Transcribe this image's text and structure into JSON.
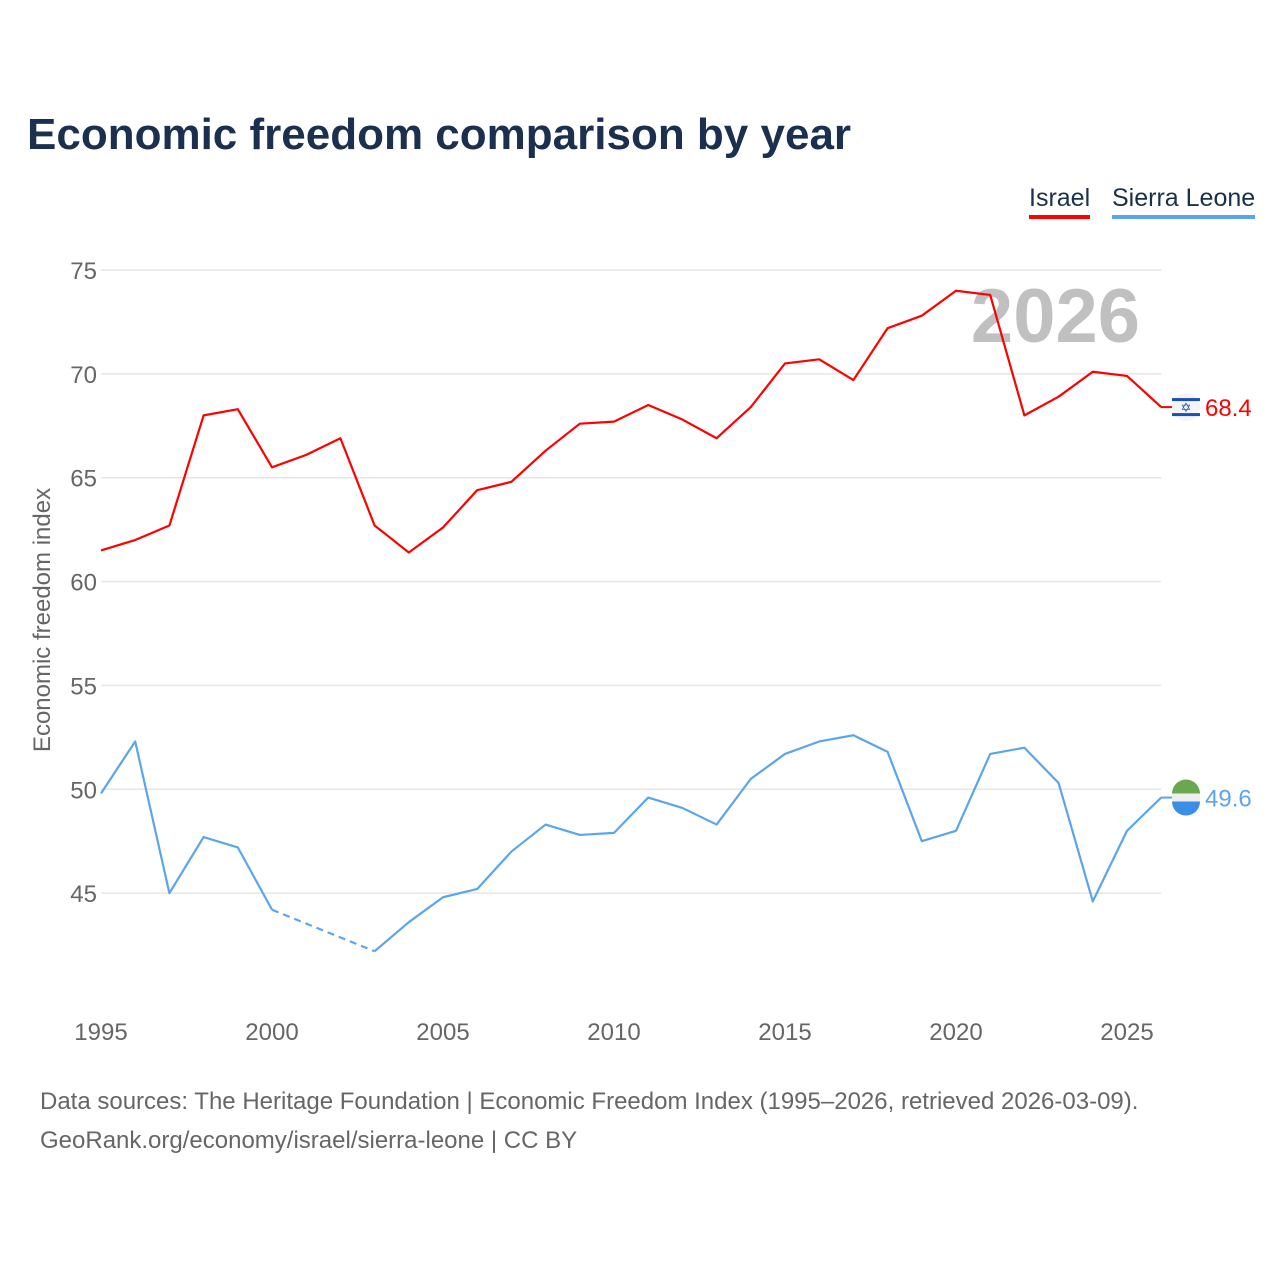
{
  "chart_data": {
    "type": "line",
    "title": "Economic freedom comparison by year",
    "xlabel": "",
    "ylabel": "Economic freedom index",
    "xlim": [
      1995,
      2026
    ],
    "ylim": [
      40,
      75
    ],
    "y_ticks": [
      45,
      50,
      55,
      60,
      65,
      70,
      75
    ],
    "x_ticks": [
      1995,
      2000,
      2005,
      2010,
      2015,
      2020,
      2025
    ],
    "grid": true,
    "legend_position": "top-right",
    "year_label": "2026",
    "x": [
      1995,
      1996,
      1997,
      1998,
      1999,
      2000,
      2001,
      2002,
      2003,
      2004,
      2005,
      2006,
      2007,
      2008,
      2009,
      2010,
      2011,
      2012,
      2013,
      2014,
      2015,
      2016,
      2017,
      2018,
      2019,
      2020,
      2021,
      2022,
      2023,
      2024,
      2025,
      2026
    ],
    "series": [
      {
        "name": "Israel",
        "color": "#ff0000",
        "end_label": "68.4",
        "values": [
          61.5,
          62.0,
          62.7,
          68.0,
          68.3,
          65.5,
          66.1,
          66.9,
          62.7,
          61.4,
          62.6,
          64.4,
          64.8,
          66.3,
          67.6,
          67.7,
          68.5,
          67.8,
          66.9,
          68.4,
          70.5,
          70.7,
          69.7,
          72.2,
          72.8,
          74.0,
          73.8,
          68.0,
          68.9,
          70.1,
          69.9,
          68.4
        ]
      },
      {
        "name": "Sierra Leone",
        "color": "#5aa5ec",
        "end_label": "49.6",
        "values": [
          49.8,
          52.3,
          45.0,
          47.7,
          47.2,
          44.2,
          null,
          null,
          42.2,
          43.6,
          44.8,
          45.2,
          47.0,
          48.3,
          47.8,
          47.9,
          49.6,
          49.1,
          48.3,
          50.5,
          51.7,
          52.3,
          52.6,
          51.8,
          47.5,
          48.0,
          51.7,
          52.0,
          50.3,
          44.6,
          48.0,
          49.6
        ]
      }
    ]
  },
  "footer": {
    "line1": "Data sources: The Heritage Foundation | Economic Freedom Index (1995–2026, retrieved 2026-03-09).",
    "line2": "GeoRank.org/economy/israel/sierra-leone | CC BY"
  }
}
